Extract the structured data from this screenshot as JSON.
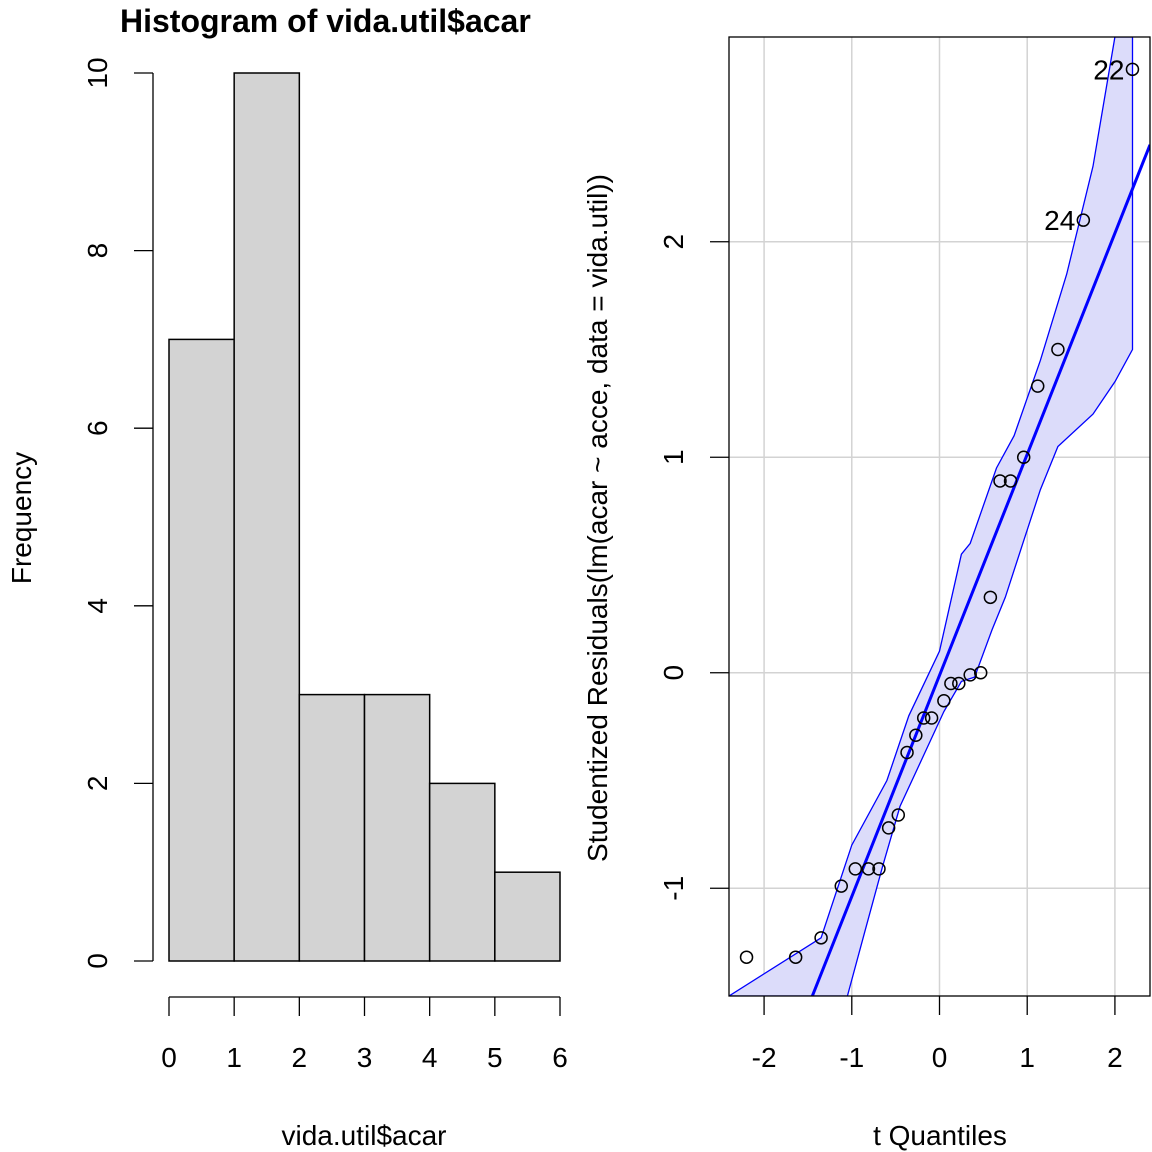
{
  "chart_data": [
    {
      "type": "bar",
      "title": "Histogram of vida.util$acar",
      "xlabel": "vida.util$acar",
      "ylabel": "Frequency",
      "bins": [
        [
          0,
          1
        ],
        [
          1,
          2
        ],
        [
          2,
          3
        ],
        [
          3,
          4
        ],
        [
          4,
          5
        ],
        [
          5,
          6
        ]
      ],
      "values": [
        7,
        10,
        3,
        3,
        2,
        1
      ],
      "xlim": [
        0,
        6
      ],
      "ylim": [
        0,
        10
      ],
      "xticks": [
        "0",
        "1",
        "2",
        "3",
        "4",
        "5",
        "6"
      ],
      "yticks": [
        "0",
        "2",
        "4",
        "6",
        "8",
        "10"
      ],
      "bar_fill": "#d3d3d3",
      "grid": false
    },
    {
      "type": "scatter",
      "xlabel": "t Quantiles",
      "ylabel": "Studentized Residuals(lm(acar ~ acce, data = vida.util))",
      "xlim": [
        -2.4,
        2.4
      ],
      "ylim": [
        -1.5,
        2.95
      ],
      "xticks": [
        "-2",
        "-1",
        "0",
        "1",
        "2"
      ],
      "yticks": [
        "-1",
        "0",
        "1",
        "2"
      ],
      "grid": true,
      "color": "#0000ff",
      "band_fill": "#dcdcfa",
      "points": [
        {
          "x": -2.2,
          "y": -1.32
        },
        {
          "x": -1.64,
          "y": -1.32
        },
        {
          "x": -1.35,
          "y": -1.23
        },
        {
          "x": -1.12,
          "y": -0.99
        },
        {
          "x": -0.96,
          "y": -0.91
        },
        {
          "x": -0.81,
          "y": -0.91
        },
        {
          "x": -0.69,
          "y": -0.91
        },
        {
          "x": -0.58,
          "y": -0.72
        },
        {
          "x": -0.47,
          "y": -0.66
        },
        {
          "x": -0.37,
          "y": -0.37
        },
        {
          "x": -0.27,
          "y": -0.29
        },
        {
          "x": -0.18,
          "y": -0.21
        },
        {
          "x": -0.09,
          "y": -0.21
        },
        {
          "x": 0.05,
          "y": -0.13
        },
        {
          "x": 0.13,
          "y": -0.05
        },
        {
          "x": 0.22,
          "y": -0.05
        },
        {
          "x": 0.35,
          "y": -0.01
        },
        {
          "x": 0.47,
          "y": 0.0
        },
        {
          "x": 0.58,
          "y": 0.35
        },
        {
          "x": 0.69,
          "y": 0.89
        },
        {
          "x": 0.81,
          "y": 0.89
        },
        {
          "x": 0.96,
          "y": 1.0
        },
        {
          "x": 1.12,
          "y": 1.33
        },
        {
          "x": 1.35,
          "y": 1.5
        },
        {
          "x": 1.64,
          "y": 2.1
        },
        {
          "x": 2.2,
          "y": 2.8
        }
      ],
      "labeled_points": [
        {
          "label": "22",
          "x": 2.2,
          "y": 2.8
        },
        {
          "label": "24",
          "x": 1.64,
          "y": 2.1
        }
      ],
      "reference_line": [
        [
          -1.45,
          -1.5
        ],
        [
          2.4,
          2.45
        ]
      ],
      "band_upper": [
        [
          -2.4,
          -1.5
        ],
        [
          -1.35,
          -1.23
        ],
        [
          -1.0,
          -0.8
        ],
        [
          -0.6,
          -0.5
        ],
        [
          -0.35,
          -0.2
        ],
        [
          0.0,
          0.1
        ],
        [
          0.25,
          0.55
        ],
        [
          0.35,
          0.6
        ],
        [
          0.65,
          0.95
        ],
        [
          0.85,
          1.1
        ],
        [
          1.15,
          1.45
        ],
        [
          1.45,
          1.85
        ],
        [
          1.75,
          2.35
        ],
        [
          2.0,
          2.95
        ]
      ],
      "band_lower": [
        [
          2.2,
          2.95
        ],
        [
          2.2,
          1.5
        ],
        [
          2.0,
          1.35
        ],
        [
          1.75,
          1.2
        ],
        [
          1.35,
          1.05
        ],
        [
          1.15,
          0.85
        ],
        [
          0.95,
          0.6
        ],
        [
          0.75,
          0.35
        ],
        [
          0.6,
          0.2
        ],
        [
          0.4,
          -0.02
        ],
        [
          0.25,
          -0.04
        ],
        [
          0.05,
          -0.18
        ],
        [
          -0.2,
          -0.4
        ],
        [
          -0.45,
          -0.62
        ],
        [
          -0.65,
          -0.9
        ],
        [
          -0.85,
          -1.2
        ],
        [
          -1.05,
          -1.5
        ]
      ]
    }
  ]
}
